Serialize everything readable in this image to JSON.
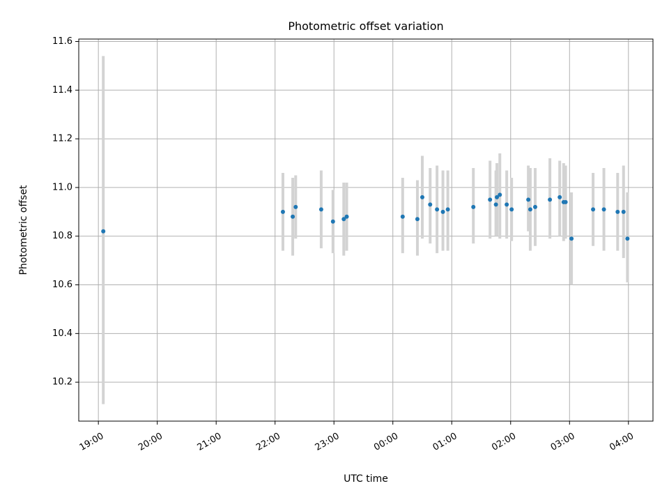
{
  "chart_data": {
    "type": "scatter",
    "title": "Photometric offset variation",
    "xlabel": "UTC time",
    "ylabel": "Photometric offset",
    "x_unit": "UTC",
    "x_axis_start": "2024-01-01T19:00",
    "xlim": [
      "2024-01-01T18:40",
      "2024-01-02T04:25"
    ],
    "ylim": [
      10.04,
      11.61
    ],
    "x_ticks": [
      {
        "t": "2024-01-01T19:00",
        "label": "19:00"
      },
      {
        "t": "2024-01-01T20:00",
        "label": "20:00"
      },
      {
        "t": "2024-01-01T21:00",
        "label": "21:00"
      },
      {
        "t": "2024-01-01T22:00",
        "label": "22:00"
      },
      {
        "t": "2024-01-01T23:00",
        "label": "23:00"
      },
      {
        "t": "2024-01-02T00:00",
        "label": "00:00"
      },
      {
        "t": "2024-01-02T01:00",
        "label": "01:00"
      },
      {
        "t": "2024-01-02T02:00",
        "label": "02:00"
      },
      {
        "t": "2024-01-02T03:00",
        "label": "03:00"
      },
      {
        "t": "2024-01-02T04:00",
        "label": "04:00"
      }
    ],
    "y_ticks": [
      10.2,
      10.4,
      10.6,
      10.8,
      11.0,
      11.2,
      11.4,
      11.6
    ],
    "y_tick_labels": [
      "10.2",
      "10.4",
      "10.6",
      "10.8",
      "11.0",
      "11.2",
      "11.4",
      "11.6"
    ],
    "grid": true,
    "point_color": "#1f77b4",
    "errorbar_color": "#d3d3d3",
    "points": [
      {
        "t": "2024-01-01T19:05",
        "y": 10.82,
        "lo": 10.11,
        "hi": 11.54
      },
      {
        "t": "2024-01-01T22:08",
        "y": 10.9,
        "lo": 10.74,
        "hi": 11.06
      },
      {
        "t": "2024-01-01T22:18",
        "y": 10.88,
        "lo": 10.72,
        "hi": 11.04
      },
      {
        "t": "2024-01-01T22:21",
        "y": 10.92,
        "lo": 10.79,
        "hi": 11.05
      },
      {
        "t": "2024-01-01T22:47",
        "y": 10.91,
        "lo": 10.75,
        "hi": 11.07
      },
      {
        "t": "2024-01-01T22:59",
        "y": 10.86,
        "lo": 10.73,
        "hi": 10.99
      },
      {
        "t": "2024-01-01T23:10",
        "y": 10.87,
        "lo": 10.72,
        "hi": 11.02
      },
      {
        "t": "2024-01-01T23:13",
        "y": 10.88,
        "lo": 10.74,
        "hi": 11.02
      },
      {
        "t": "2024-01-02T00:10",
        "y": 10.88,
        "lo": 10.73,
        "hi": 11.04
      },
      {
        "t": "2024-01-02T00:25",
        "y": 10.87,
        "lo": 10.72,
        "hi": 11.03
      },
      {
        "t": "2024-01-02T00:30",
        "y": 10.96,
        "lo": 10.79,
        "hi": 11.13
      },
      {
        "t": "2024-01-02T00:38",
        "y": 10.93,
        "lo": 10.77,
        "hi": 11.08
      },
      {
        "t": "2024-01-02T00:45",
        "y": 10.91,
        "lo": 10.73,
        "hi": 11.09
      },
      {
        "t": "2024-01-02T00:51",
        "y": 10.9,
        "lo": 10.74,
        "hi": 11.07
      },
      {
        "t": "2024-01-02T00:56",
        "y": 10.91,
        "lo": 10.74,
        "hi": 11.07
      },
      {
        "t": "2024-01-02T01:22",
        "y": 10.92,
        "lo": 10.77,
        "hi": 11.08
      },
      {
        "t": "2024-01-02T01:39",
        "y": 10.95,
        "lo": 10.79,
        "hi": 11.11
      },
      {
        "t": "2024-01-02T01:45",
        "y": 10.93,
        "lo": 10.8,
        "hi": 11.07
      },
      {
        "t": "2024-01-02T01:46",
        "y": 10.96,
        "lo": 10.8,
        "hi": 11.1
      },
      {
        "t": "2024-01-02T01:49",
        "y": 10.97,
        "lo": 10.79,
        "hi": 11.14
      },
      {
        "t": "2024-01-02T01:56",
        "y": 10.93,
        "lo": 10.79,
        "hi": 11.07
      },
      {
        "t": "2024-01-02T02:01",
        "y": 10.91,
        "lo": 10.78,
        "hi": 11.04
      },
      {
        "t": "2024-01-02T02:18",
        "y": 10.95,
        "lo": 10.82,
        "hi": 11.09
      },
      {
        "t": "2024-01-02T02:20",
        "y": 10.91,
        "lo": 10.74,
        "hi": 11.08
      },
      {
        "t": "2024-01-02T02:25",
        "y": 10.92,
        "lo": 10.76,
        "hi": 11.08
      },
      {
        "t": "2024-01-02T02:40",
        "y": 10.95,
        "lo": 10.79,
        "hi": 11.12
      },
      {
        "t": "2024-01-02T02:50",
        "y": 10.96,
        "lo": 10.8,
        "hi": 11.11
      },
      {
        "t": "2024-01-02T02:54",
        "y": 10.94,
        "lo": 10.78,
        "hi": 11.1
      },
      {
        "t": "2024-01-02T02:56",
        "y": 10.94,
        "lo": 10.79,
        "hi": 11.09
      },
      {
        "t": "2024-01-02T03:02",
        "y": 10.79,
        "lo": 10.6,
        "hi": 10.98
      },
      {
        "t": "2024-01-02T03:24",
        "y": 10.91,
        "lo": 10.76,
        "hi": 11.06
      },
      {
        "t": "2024-01-02T03:35",
        "y": 10.91,
        "lo": 10.74,
        "hi": 11.08
      },
      {
        "t": "2024-01-02T03:49",
        "y": 10.9,
        "lo": 10.74,
        "hi": 11.06
      },
      {
        "t": "2024-01-02T03:55",
        "y": 10.9,
        "lo": 10.71,
        "hi": 11.09
      },
      {
        "t": "2024-01-02T03:59",
        "y": 10.79,
        "lo": 10.61,
        "hi": 10.98
      }
    ]
  }
}
